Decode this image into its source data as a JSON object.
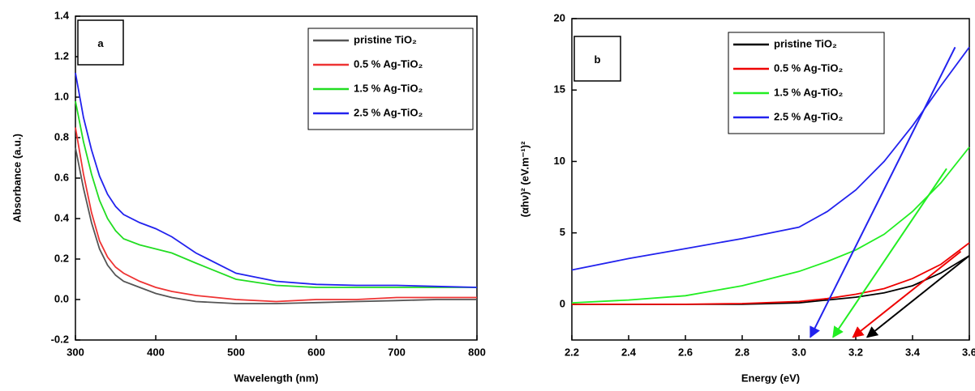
{
  "chart_data": [
    {
      "type": "line",
      "panel_label": "a",
      "x_label": "Wavelength (nm)",
      "y_label": "Absorbance (a.u.)",
      "xlim": [
        300,
        800
      ],
      "xticks": [
        300,
        400,
        500,
        600,
        700,
        800
      ],
      "ylim": [
        -0.2,
        1.4
      ],
      "yticks": [
        -0.2,
        {
          "value": 0,
          "label": "0.0"
        },
        0.2,
        0.4,
        0.6,
        0.8,
        {
          "value": 1,
          "label": "1.0"
        },
        1.2,
        1.4
      ],
      "x": [
        300,
        310,
        320,
        330,
        340,
        350,
        360,
        380,
        400,
        420,
        450,
        500,
        550,
        600,
        650,
        700,
        750,
        800
      ],
      "series": [
        {
          "name": "pristine TiO₂",
          "color": "#555555",
          "values": [
            0.75,
            0.55,
            0.38,
            0.25,
            0.17,
            0.12,
            0.09,
            0.06,
            0.03,
            0.01,
            -0.01,
            -0.02,
            -0.02,
            -0.015,
            -0.01,
            -0.005,
            0,
            0
          ]
        },
        {
          "name": "0.5 % Ag-TiO₂",
          "color": "#ee3333",
          "values": [
            0.85,
            0.62,
            0.43,
            0.29,
            0.21,
            0.16,
            0.13,
            0.09,
            0.06,
            0.04,
            0.02,
            0,
            -0.01,
            0,
            0,
            0.01,
            0.01,
            0.01
          ]
        },
        {
          "name": "1.5 % Ag-TiO₂",
          "color": "#22dd22",
          "values": [
            0.98,
            0.78,
            0.62,
            0.49,
            0.4,
            0.34,
            0.3,
            0.27,
            0.25,
            0.23,
            0.18,
            0.1,
            0.07,
            0.06,
            0.06,
            0.06,
            0.06,
            0.06
          ]
        },
        {
          "name": "2.5 % Ag-TiO₂",
          "color": "#2222ee",
          "values": [
            1.12,
            0.9,
            0.74,
            0.61,
            0.52,
            0.46,
            0.42,
            0.38,
            0.35,
            0.31,
            0.23,
            0.13,
            0.09,
            0.075,
            0.07,
            0.07,
            0.065,
            0.06
          ]
        }
      ]
    },
    {
      "type": "line",
      "panel_label": "b",
      "x_label": "Energy (eV)",
      "y_label": "(αhν)² (eV.m⁻¹)²",
      "xlim": [
        2.2,
        3.6
      ],
      "xticks": [
        2.2,
        2.4,
        2.6,
        2.8,
        {
          "value": 3,
          "label": "3.0"
        },
        3.2,
        3.4,
        3.6
      ],
      "ylim": [
        -2.5,
        20
      ],
      "yticks": [
        0,
        5,
        10,
        15,
        20
      ],
      "x": [
        2.2,
        2.4,
        2.6,
        2.8,
        3.0,
        3.1,
        3.2,
        3.3,
        3.4,
        3.5,
        3.6
      ],
      "series": [
        {
          "name": "pristine TiO₂",
          "color": "#000000",
          "values": [
            0,
            0,
            0,
            0,
            0.1,
            0.3,
            0.5,
            0.8,
            1.3,
            2.2,
            3.4
          ]
        },
        {
          "name": "0.5 % Ag-TiO₂",
          "color": "#ee0000",
          "values": [
            0,
            0,
            0,
            0.05,
            0.2,
            0.4,
            0.7,
            1.1,
            1.8,
            2.8,
            4.3
          ]
        },
        {
          "name": "1.5 % Ag-TiO₂",
          "color": "#22ee22",
          "values": [
            0.1,
            0.3,
            0.6,
            1.3,
            2.3,
            3.0,
            3.8,
            4.9,
            6.5,
            8.5,
            11
          ]
        },
        {
          "name": "2.5 % Ag-TiO₂",
          "color": "#2222ee",
          "values": [
            2.4,
            3.2,
            3.9,
            4.6,
            5.4,
            6.5,
            8.0,
            10.0,
            12.5,
            15.3,
            18
          ]
        }
      ],
      "tangents": [
        {
          "color": "#000000",
          "x": [
            3.6,
            3.24
          ],
          "values": [
            3.4,
            -2.3
          ]
        },
        {
          "color": "#ee0000",
          "x": [
            3.57,
            3.19
          ],
          "values": [
            3.7,
            -2.3
          ]
        },
        {
          "color": "#22ee22",
          "x": [
            3.52,
            3.12
          ],
          "values": [
            9.5,
            -2.3
          ]
        },
        {
          "color": "#2222ee",
          "x": [
            3.55,
            3.04
          ],
          "values": [
            18,
            -2.3
          ]
        }
      ]
    }
  ]
}
